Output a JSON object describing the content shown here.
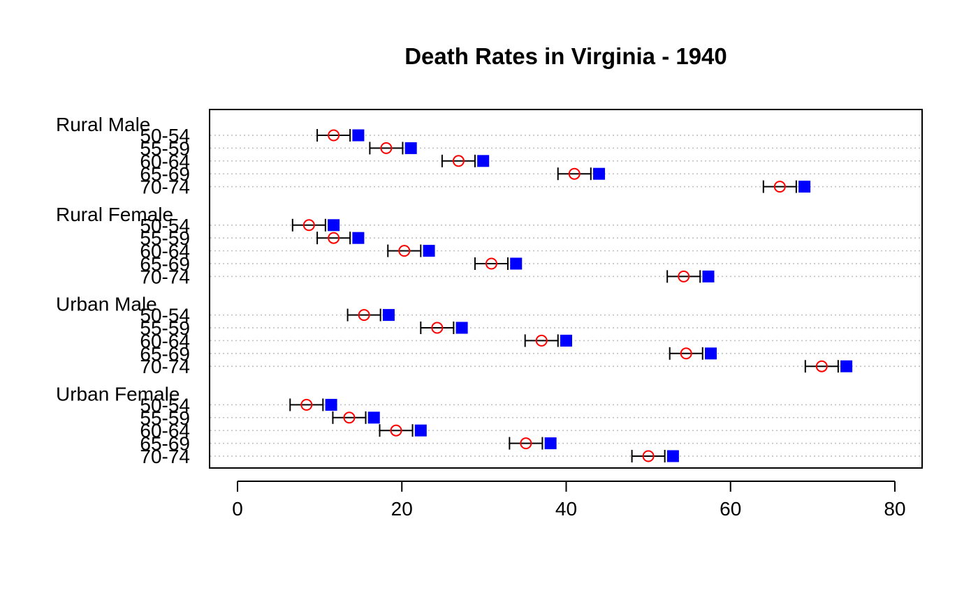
{
  "chart_data": {
    "type": "dotchart",
    "title": "Death Rates in Virginia - 1940",
    "xlim": [
      0,
      80
    ],
    "x_ticks": [
      0,
      20,
      40,
      60,
      80
    ],
    "grid": "dotted horizontal guide lines",
    "marker_open_circle_color": "#ff0000",
    "marker_filled_square_color": "#0000ff",
    "errorbar_color": "#000000",
    "groups": [
      {
        "name": "Rural Male",
        "rows": [
          {
            "label": "50-54",
            "circle": 11.7,
            "square": 14.7,
            "err_low": 9.7,
            "err_high": 13.7
          },
          {
            "label": "55-59",
            "circle": 18.1,
            "square": 21.1,
            "err_low": 16.1,
            "err_high": 20.1
          },
          {
            "label": "60-64",
            "circle": 26.9,
            "square": 29.9,
            "err_low": 24.9,
            "err_high": 28.9
          },
          {
            "label": "65-69",
            "circle": 41.0,
            "square": 44.0,
            "err_low": 39.0,
            "err_high": 43.0
          },
          {
            "label": "70-74",
            "circle": 66.0,
            "square": 69.0,
            "err_low": 64.0,
            "err_high": 68.0
          }
        ]
      },
      {
        "name": "Rural Female",
        "rows": [
          {
            "label": "50-54",
            "circle": 8.7,
            "square": 11.7,
            "err_low": 6.7,
            "err_high": 10.7
          },
          {
            "label": "55-59",
            "circle": 11.7,
            "square": 14.7,
            "err_low": 9.7,
            "err_high": 13.7
          },
          {
            "label": "60-64",
            "circle": 20.3,
            "square": 23.3,
            "err_low": 18.3,
            "err_high": 22.3
          },
          {
            "label": "65-69",
            "circle": 30.9,
            "square": 33.9,
            "err_low": 28.9,
            "err_high": 32.9
          },
          {
            "label": "70-74",
            "circle": 54.3,
            "square": 57.3,
            "err_low": 52.3,
            "err_high": 56.3
          }
        ]
      },
      {
        "name": "Urban Male",
        "rows": [
          {
            "label": "50-54",
            "circle": 15.4,
            "square": 18.4,
            "err_low": 13.4,
            "err_high": 17.4
          },
          {
            "label": "55-59",
            "circle": 24.3,
            "square": 27.3,
            "err_low": 22.3,
            "err_high": 26.3
          },
          {
            "label": "60-64",
            "circle": 37.0,
            "square": 40.0,
            "err_low": 35.0,
            "err_high": 39.0
          },
          {
            "label": "65-69",
            "circle": 54.6,
            "square": 57.6,
            "err_low": 52.6,
            "err_high": 56.6
          },
          {
            "label": "70-74",
            "circle": 71.1,
            "square": 74.1,
            "err_low": 69.1,
            "err_high": 73.1
          }
        ]
      },
      {
        "name": "Urban Female",
        "rows": [
          {
            "label": "50-54",
            "circle": 8.4,
            "square": 11.4,
            "err_low": 6.4,
            "err_high": 10.4
          },
          {
            "label": "55-59",
            "circle": 13.6,
            "square": 16.6,
            "err_low": 11.6,
            "err_high": 15.6
          },
          {
            "label": "60-64",
            "circle": 19.3,
            "square": 22.3,
            "err_low": 17.3,
            "err_high": 21.3
          },
          {
            "label": "65-69",
            "circle": 35.1,
            "square": 38.1,
            "err_low": 33.1,
            "err_high": 37.1
          },
          {
            "label": "70-74",
            "circle": 50.0,
            "square": 53.0,
            "err_low": 48.0,
            "err_high": 52.0
          }
        ]
      }
    ]
  }
}
